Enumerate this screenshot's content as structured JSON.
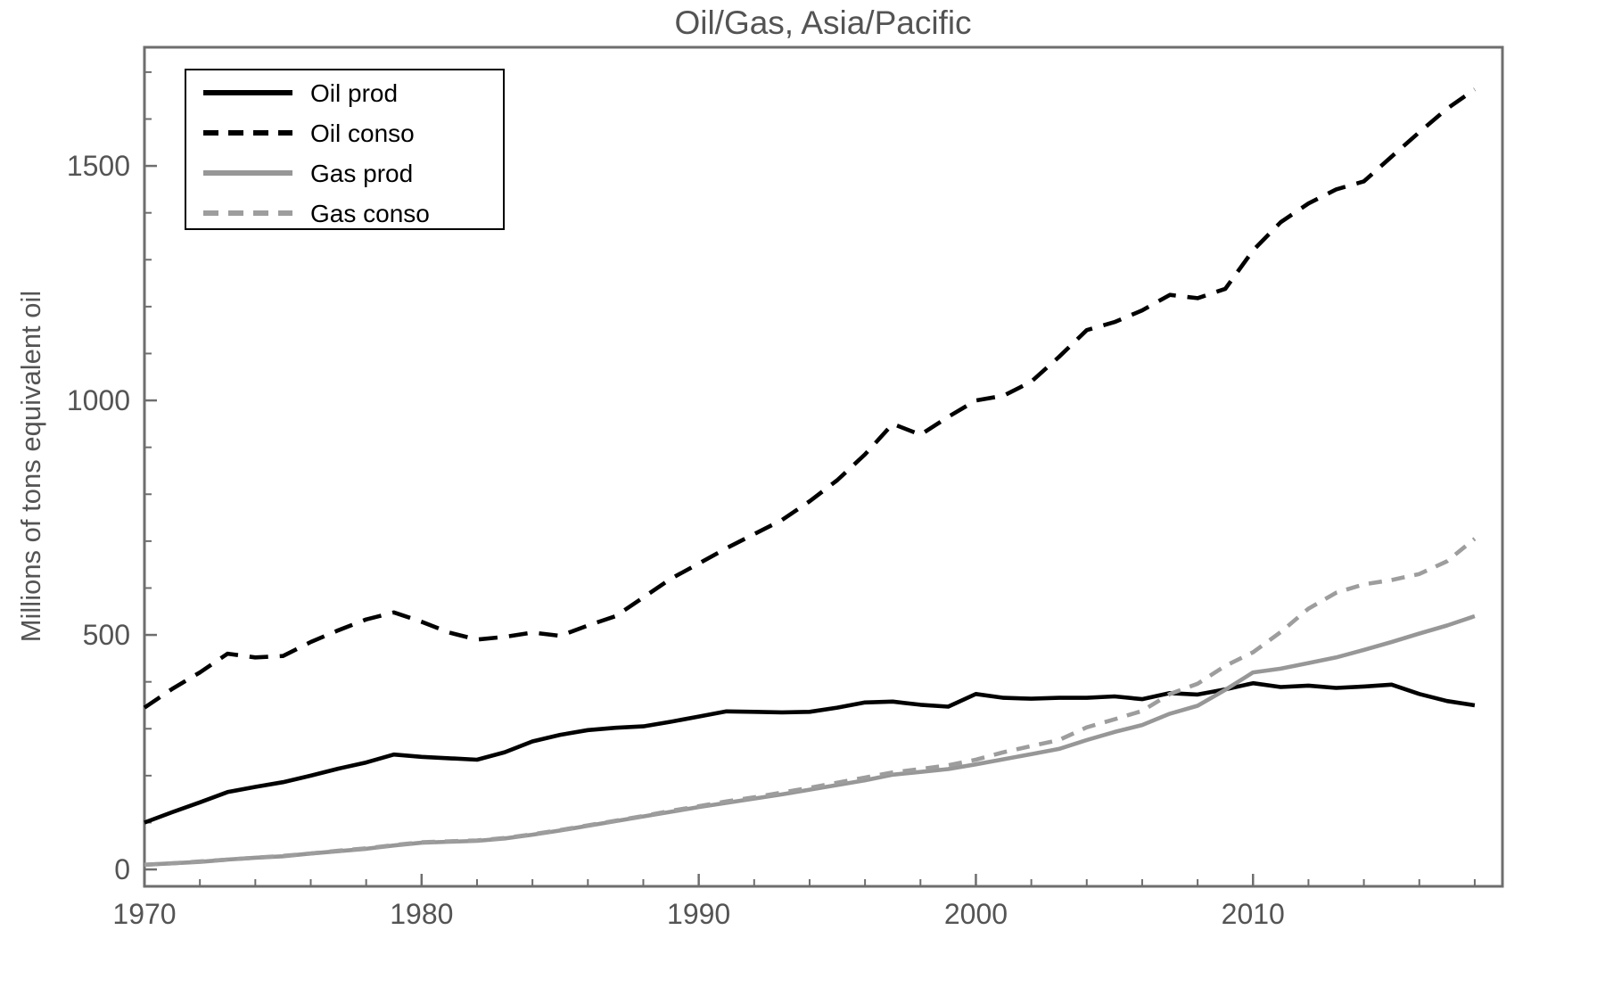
{
  "chart_data": {
    "type": "line",
    "title": "Oil/Gas, Asia/Pacific",
    "xlabel": "",
    "ylabel": "Millions of tons equivalent oil",
    "legend_position": "top-left",
    "grid": false,
    "frame": true,
    "xlim": [
      1970,
      2019
    ],
    "ylim": [
      -36,
      1753
    ],
    "x_ticks": [
      1970,
      1980,
      1990,
      2000,
      2010
    ],
    "y_ticks": [
      0,
      500,
      1000,
      1500
    ],
    "x_minor_tick_step": 2,
    "y_minor_tick_step": 100,
    "x": [
      1970,
      1971,
      1972,
      1973,
      1974,
      1975,
      1976,
      1977,
      1978,
      1979,
      1980,
      1981,
      1982,
      1983,
      1984,
      1985,
      1986,
      1987,
      1988,
      1989,
      1990,
      1991,
      1992,
      1993,
      1994,
      1995,
      1996,
      1997,
      1998,
      1999,
      2000,
      2001,
      2002,
      2003,
      2004,
      2005,
      2006,
      2007,
      2008,
      2009,
      2010,
      2011,
      2012,
      2013,
      2014,
      2015,
      2016,
      2017,
      2018
    ],
    "series": [
      {
        "name": "Oil prod",
        "color": "#000000",
        "dash": "solid",
        "values": [
          100,
          122,
          143,
          165,
          176,
          186,
          200,
          215,
          228,
          245,
          240,
          237,
          234,
          250,
          273,
          287,
          297,
          302,
          305,
          315,
          326,
          337,
          336,
          335,
          336,
          345,
          356,
          358,
          351,
          347,
          374,
          366,
          364,
          366,
          366,
          369,
          363,
          376,
          373,
          384,
          397,
          389,
          392,
          387,
          390,
          394,
          374,
          359,
          350
        ]
      },
      {
        "name": "Oil conso",
        "color": "#000000",
        "dash": "dashed",
        "values": [
          345,
          385,
          420,
          460,
          452,
          455,
          485,
          510,
          533,
          548,
          528,
          505,
          490,
          496,
          505,
          498,
          520,
          540,
          580,
          620,
          652,
          685,
          715,
          745,
          785,
          830,
          885,
          950,
          927,
          965,
          1000,
          1010,
          1040,
          1093,
          1150,
          1167,
          1192,
          1225,
          1218,
          1238,
          1320,
          1380,
          1420,
          1450,
          1467,
          1520,
          1572,
          1622,
          1663
        ]
      },
      {
        "name": "Gas prod",
        "color": "#979797",
        "dash": "solid",
        "values": [
          10,
          13,
          16,
          21,
          25,
          28,
          34,
          39,
          44,
          51,
          57,
          59,
          61,
          66,
          74,
          83,
          93,
          103,
          113,
          123,
          133,
          142,
          151,
          160,
          170,
          180,
          190,
          202,
          208,
          214,
          224,
          235,
          246,
          257,
          276,
          293,
          308,
          332,
          349,
          383,
          420,
          428,
          440,
          452,
          468,
          485,
          503,
          520,
          540
        ]
      },
      {
        "name": "Gas conso",
        "color": "#9d9d9d",
        "dash": "dashed",
        "values": [
          10,
          13,
          17,
          21,
          25,
          29,
          34,
          40,
          45,
          52,
          58,
          60,
          62,
          67,
          75,
          84,
          94,
          104,
          114,
          125,
          135,
          145,
          154,
          164,
          174,
          185,
          196,
          207,
          214,
          222,
          234,
          250,
          263,
          276,
          303,
          320,
          338,
          374,
          396,
          434,
          463,
          506,
          556,
          590,
          608,
          617,
          630,
          657,
          705
        ]
      }
    ]
  },
  "colors": {
    "frame": "#6e6e6e",
    "tick": "#6e6e6e",
    "label_text": "#545454",
    "legend_text": "#000000",
    "legend_border": "#000000",
    "background": "#ffffff"
  }
}
